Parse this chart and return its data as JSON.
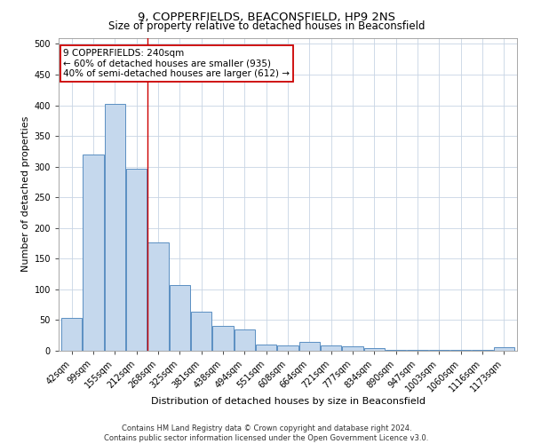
{
  "title": "9, COPPERFIELDS, BEACONSFIELD, HP9 2NS",
  "subtitle": "Size of property relative to detached houses in Beaconsfield",
  "xlabel": "Distribution of detached houses by size in Beaconsfield",
  "ylabel": "Number of detached properties",
  "footer_line1": "Contains HM Land Registry data © Crown copyright and database right 2024.",
  "footer_line2": "Contains public sector information licensed under the Open Government Licence v3.0.",
  "categories": [
    "42sqm",
    "99sqm",
    "155sqm",
    "212sqm",
    "268sqm",
    "325sqm",
    "381sqm",
    "438sqm",
    "494sqm",
    "551sqm",
    "608sqm",
    "664sqm",
    "721sqm",
    "777sqm",
    "834sqm",
    "890sqm",
    "947sqm",
    "1003sqm",
    "1060sqm",
    "1116sqm",
    "1173sqm"
  ],
  "values": [
    53,
    320,
    402,
    296,
    176,
    107,
    64,
    40,
    35,
    10,
    9,
    15,
    9,
    7,
    4,
    2,
    1,
    1,
    1,
    1,
    6
  ],
  "bar_color": "#c5d8ed",
  "bar_edge_color": "#5a8fc2",
  "bar_linewidth": 0.7,
  "grid_color": "#c8d4e4",
  "background_color": "#ffffff",
  "plot_bg_color": "#ffffff",
  "annotation_text": "9 COPPERFIELDS: 240sqm\n← 60% of detached houses are smaller (935)\n40% of semi-detached houses are larger (612) →",
  "annotation_box_color": "#ffffff",
  "annotation_box_edge_color": "#cc0000",
  "vline_color": "#cc0000",
  "vline_linewidth": 1.0,
  "vline_x_pos": 3.5,
  "ylim": [
    0,
    510
  ],
  "yticks": [
    0,
    50,
    100,
    150,
    200,
    250,
    300,
    350,
    400,
    450,
    500
  ],
  "title_fontsize": 9.5,
  "subtitle_fontsize": 8.5,
  "xlabel_fontsize": 8,
  "ylabel_fontsize": 8,
  "tick_fontsize": 7,
  "footer_fontsize": 6,
  "annotation_fontsize": 7.5
}
